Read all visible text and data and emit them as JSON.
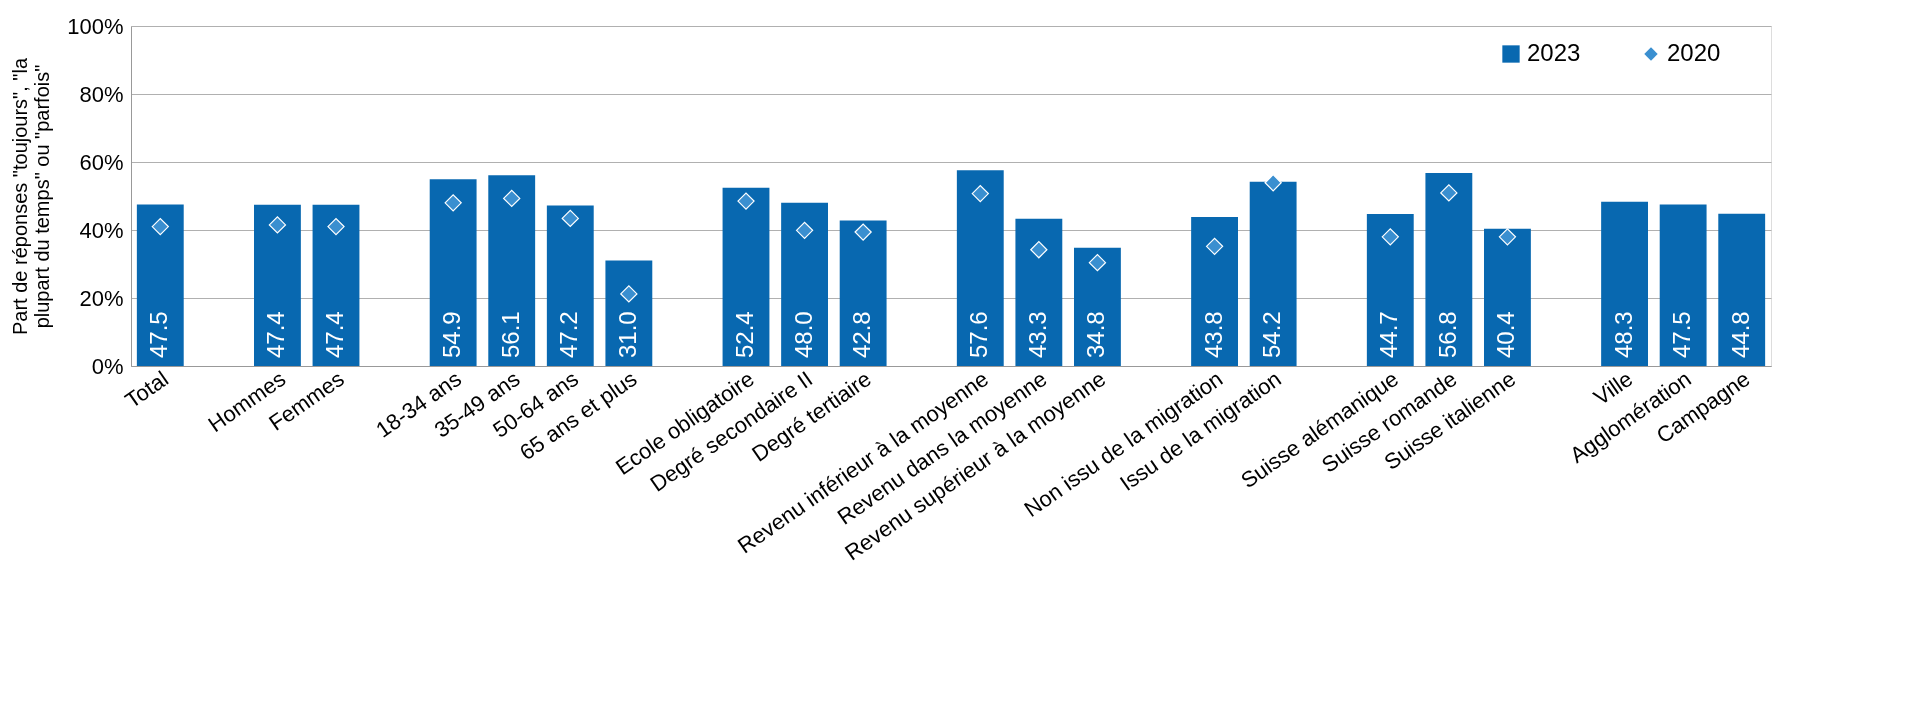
{
  "chart_data": {
    "type": "bar",
    "ylabel": "Part de réponses \"toujours\", \"la plupart du temps\" ou \"parfois\"",
    "categories": [
      "Total",
      null,
      "Hommes",
      "Femmes",
      null,
      "18-34 ans",
      "35-49 ans",
      "50-64 ans",
      "65 ans et plus",
      null,
      "Ecole obligatoire",
      "Degré secondaire II",
      "Degré tertiaire",
      null,
      "Revenu inférieur à la moyenne",
      "Revenu dans la moyenne",
      "Revenu supérieur à la moyenne",
      null,
      "Non issu de la migration",
      "Issu de la migration",
      null,
      "Suisse alémanique",
      "Suisse romande",
      "Suisse italienne",
      null,
      "Ville",
      "Agglomération",
      "Campagne"
    ],
    "series": [
      {
        "name": "2023",
        "color": "#0868b0",
        "values": [
          47.5,
          null,
          47.4,
          47.4,
          null,
          54.9,
          56.1,
          47.2,
          31.0,
          null,
          52.4,
          48.0,
          42.8,
          null,
          57.6,
          43.3,
          34.8,
          null,
          43.8,
          54.2,
          null,
          44.7,
          56.8,
          40.4,
          null,
          48.3,
          47.5,
          44.8
        ],
        "value_labels": [
          "47.5",
          null,
          "47.4",
          "47.4",
          null,
          "54.9",
          "56.1",
          "47.2",
          "31.0",
          null,
          "52.4",
          "48.0",
          "42.8",
          null,
          "57.6",
          "43.3",
          "34.8",
          null,
          "43.8",
          "54.2",
          null,
          "44.7",
          "56.8",
          "40.4",
          null,
          "48.3",
          "47.5",
          "44.8"
        ]
      },
      {
        "name": "2020",
        "type": "scatter",
        "marker": "diamond",
        "color": "#3a8fd0",
        "values": [
          41.0,
          null,
          41.5,
          41.0,
          null,
          48.0,
          49.3,
          43.4,
          21.2,
          null,
          48.5,
          39.9,
          39.4,
          null,
          50.7,
          34.2,
          30.4,
          null,
          35.2,
          53.9,
          null,
          38.0,
          50.9,
          38.0,
          null,
          null,
          null,
          null
        ]
      }
    ],
    "ylim": [
      0,
      100
    ],
    "yticks": [
      {
        "value": 0,
        "label": "0%"
      },
      {
        "value": 20,
        "label": "20%"
      },
      {
        "value": 40,
        "label": "40%"
      },
      {
        "value": 60,
        "label": "60%"
      },
      {
        "value": 80,
        "label": "80%"
      },
      {
        "value": 100,
        "label": "100%"
      }
    ],
    "grid": "y",
    "legend": "top right"
  }
}
